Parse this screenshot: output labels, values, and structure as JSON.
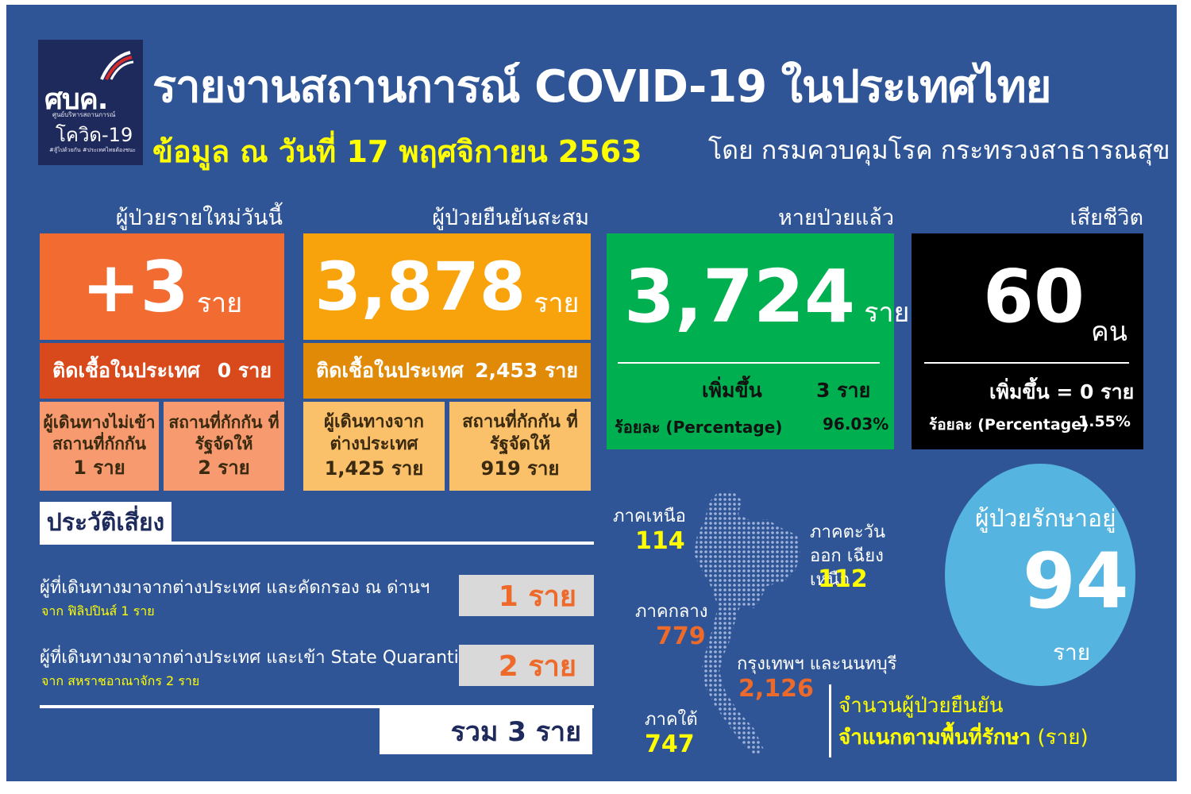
{
  "logo": {
    "main": "ศบค.",
    "sub": "ศูนย์บริหารสถานการณ์",
    "covid": "โควิด-19",
    "tags": "#สู้ไปด้วยกัน #ประเทศไทยต้องชนะ"
  },
  "header": {
    "title": "รายงานสถานการณ์ COVID-19 ในประเทศไทย",
    "date_line": "ข้อมูล ณ วันที่ 17 พฤศจิกายน 2563",
    "source_line": "โดย กรมควบคุมโรค กระทรวงสาธารณสุข"
  },
  "new_cases": {
    "heading": "ผู้ป่วยรายใหม่วันนี้",
    "value": "+3",
    "unit": "ราย",
    "domestic_label": "ติดเชื้อในประเทศ",
    "domestic_value": "0 ราย",
    "sub1_label": "ผู้เดินทางไม่เข้า สถานที่กักกัน",
    "sub1_value": "1 ราย",
    "sub2_label": "สถานที่กักกัน ที่รัฐจัดให้",
    "sub2_value": "2 ราย",
    "colors": {
      "main": "#f26b30",
      "row": "#d84a1b",
      "cell": "#f79a6f"
    }
  },
  "cumulative": {
    "heading": "ผู้ป่วยยืนยันสะสม",
    "value": "3,878",
    "unit": "ราย",
    "domestic_label": "ติดเชื้อในประเทศ",
    "domestic_value": "2,453 ราย",
    "sub1_label": "ผู้เดินทางจาก ต่างประเทศ",
    "sub1_value": "1,425 ราย",
    "sub2_label": "สถานที่กักกัน ที่รัฐจัดให้",
    "sub2_value": "919 ราย",
    "colors": {
      "main": "#f8a30c",
      "row": "#e08a07",
      "cell": "#fbc06a"
    }
  },
  "recovered": {
    "heading": "หายป่วยแล้ว",
    "value": "3,724",
    "unit": "ราย",
    "increase_label": "เพิ่มขึ้น",
    "increase_value": "3 ราย",
    "percent_label": "ร้อยละ (Percentage)",
    "percent_value": "96.03%",
    "color": "#00b050"
  },
  "deaths": {
    "heading": "เสียชีวิต",
    "value": "60",
    "unit": "คน",
    "increase_text": "เพิ่มขึ้น = 0 ราย",
    "percent_label": "ร้อยละ (Percentage)",
    "percent_value": "1.55%",
    "color": "#000000"
  },
  "risk": {
    "title": "ประวัติเสี่ยง",
    "items": [
      {
        "desc": "ผู้ที่เดินทางมาจากต่างประเทศ และคัดกรอง ณ ด่านฯ",
        "from": "จาก ฟิลิปปินส์ 1 ราย",
        "value": "1 ราย"
      },
      {
        "desc": "ผู้ที่เดินทางมาจากต่างประเทศ และเข้า State Quarantine",
        "from": "จาก สหราชอาณาจักร 2 ราย",
        "value": "2 ราย"
      }
    ],
    "total": "รวม 3 ราย"
  },
  "regions": {
    "north": {
      "name": "ภาคเหนือ",
      "value": "114"
    },
    "northeast": {
      "name": "ภาคตะวันออก เฉียงเหนือ",
      "value": "112"
    },
    "central": {
      "name": "ภาคกลาง",
      "value": "779"
    },
    "bangkok": {
      "name": "กรุงเทพฯ และนนทบุรี",
      "value": "2,126"
    },
    "south": {
      "name": "ภาคใต้",
      "value": "747"
    },
    "legend_line1": "จำนวนผู้ป่วยยืนยัน",
    "legend_line2_bold": "จำแนกตามพื้นที่รักษา",
    "legend_line2_unit": "(ราย)"
  },
  "in_treatment": {
    "label": "ผู้ป่วยรักษาอยู่",
    "value": "94",
    "unit": "ราย",
    "color": "#56b4e0"
  },
  "colors": {
    "background": "#2f5597",
    "yellow": "#ffff00",
    "orange_value": "#ee6a2a"
  }
}
